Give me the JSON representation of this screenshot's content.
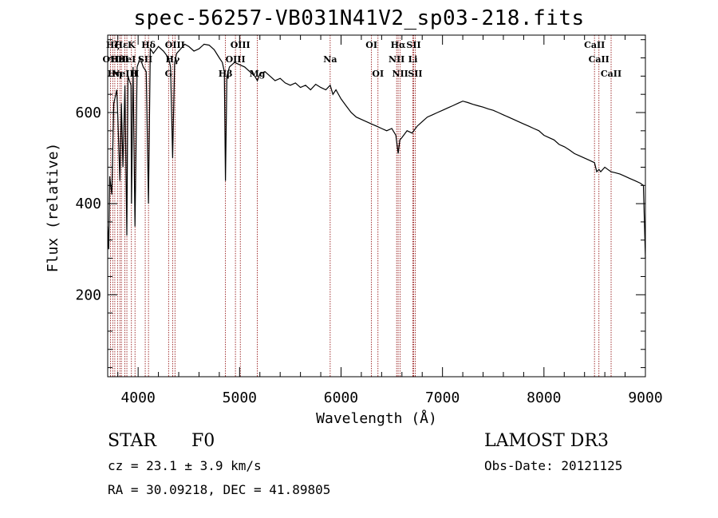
{
  "chart_data": {
    "type": "line",
    "title": "spec-56257-VB031N41V2_sp03-218.fits",
    "xlabel": "Wavelength (Å)",
    "ylabel": "Flux (relative)",
    "xlim": [
      3700,
      9000
    ],
    "ylim": [
      20,
      770
    ],
    "xticks": [
      4000,
      5000,
      6000,
      7000,
      8000,
      9000
    ],
    "yticks": [
      200,
      400,
      600
    ],
    "series": [
      {
        "name": "flux",
        "x": [
          3700,
          3710,
          3720,
          3740,
          3760,
          3790,
          3800,
          3820,
          3835,
          3850,
          3870,
          3889,
          3900,
          3930,
          3934,
          3950,
          3969,
          3990,
          4020,
          4050,
          4080,
          4102,
          4120,
          4150,
          4200,
          4250,
          4300,
          4320,
          4340,
          4360,
          4380,
          4420,
          4460,
          4500,
          4550,
          4600,
          4650,
          4700,
          4750,
          4800,
          4830,
          4850,
          4861,
          4875,
          4900,
          4950,
          5000,
          5050,
          5100,
          5150,
          5175,
          5200,
          5250,
          5300,
          5350,
          5400,
          5450,
          5500,
          5550,
          5600,
          5650,
          5700,
          5750,
          5800,
          5850,
          5893,
          5920,
          5950,
          6000,
          6050,
          6100,
          6150,
          6200,
          6250,
          6300,
          6350,
          6400,
          6450,
          6500,
          6540,
          6563,
          6580,
          6600,
          6650,
          6700,
          6750,
          6800,
          6850,
          6900,
          6950,
          7000,
          7050,
          7100,
          7150,
          7200,
          7250,
          7300,
          7350,
          7400,
          7450,
          7500,
          7550,
          7600,
          7650,
          7700,
          7750,
          7800,
          7850,
          7900,
          7950,
          8000,
          8050,
          8100,
          8150,
          8200,
          8250,
          8300,
          8350,
          8400,
          8450,
          8498,
          8520,
          8542,
          8560,
          8600,
          8630,
          8662,
          8700,
          8750,
          8800,
          8850,
          8900,
          8950,
          8980,
          9000
        ],
        "y": [
          350,
          300,
          460,
          420,
          620,
          650,
          590,
          450,
          620,
          480,
          660,
          330,
          680,
          660,
          400,
          700,
          350,
          700,
          720,
          700,
          690,
          400,
          740,
          730,
          745,
          735,
          720,
          700,
          500,
          710,
          730,
          740,
          750,
          745,
          735,
          740,
          750,
          748,
          738,
          720,
          710,
          690,
          450,
          680,
          700,
          710,
          705,
          700,
          690,
          680,
          670,
          685,
          690,
          680,
          670,
          675,
          665,
          660,
          665,
          655,
          660,
          650,
          662,
          655,
          650,
          660,
          640,
          650,
          630,
          615,
          600,
          590,
          585,
          580,
          575,
          570,
          565,
          560,
          565,
          550,
          510,
          540,
          545,
          560,
          555,
          570,
          580,
          590,
          595,
          600,
          605,
          610,
          615,
          620,
          625,
          622,
          618,
          615,
          612,
          608,
          605,
          600,
          595,
          590,
          585,
          580,
          575,
          570,
          565,
          560,
          550,
          545,
          540,
          530,
          525,
          518,
          510,
          505,
          500,
          495,
          490,
          470,
          475,
          470,
          480,
          475,
          470,
          468,
          465,
          460,
          455,
          450,
          445,
          440,
          280
        ]
      }
    ],
    "lines": [
      {
        "wave": 3727,
        "label": "OII",
        "row": 1
      },
      {
        "wave": 3750,
        "label": "Hζ",
        "row": 0
      },
      {
        "wave": 3770,
        "label": "Hη",
        "row": 2
      },
      {
        "wave": 3797,
        "label": "Hθ",
        "row": 1
      },
      {
        "wave": 3820,
        "label": "HeI",
        "row": 1
      },
      {
        "wave": 3835,
        "label": "Hε",
        "row": 0
      },
      {
        "wave": 3869,
        "label": "NeIII",
        "row": 2
      },
      {
        "wave": 3889,
        "label": "HeI",
        "row": 1
      },
      {
        "wave": 3934,
        "label": "K",
        "row": 0
      },
      {
        "wave": 3969,
        "label": "H",
        "row": 2
      },
      {
        "wave": 4070,
        "label": "SII",
        "row": 1
      },
      {
        "wave": 4102,
        "label": "Hδ",
        "row": 0
      },
      {
        "wave": 4300,
        "label": "G",
        "row": 2
      },
      {
        "wave": 4340,
        "label": "Hγ",
        "row": 1
      },
      {
        "wave": 4363,
        "label": "OIII",
        "row": 0
      },
      {
        "wave": 4861,
        "label": "Hβ",
        "row": 2
      },
      {
        "wave": 4959,
        "label": "OIII",
        "row": 1
      },
      {
        "wave": 5007,
        "label": "OIII",
        "row": 0
      },
      {
        "wave": 5175,
        "label": "Mg",
        "row": 2
      },
      {
        "wave": 5893,
        "label": "Na",
        "row": 1
      },
      {
        "wave": 6300,
        "label": "OI",
        "row": 0
      },
      {
        "wave": 6364,
        "label": "OI",
        "row": 2
      },
      {
        "wave": 6548,
        "label": "NII",
        "row": 1
      },
      {
        "wave": 6563,
        "label": "Hα",
        "row": 0
      },
      {
        "wave": 6583,
        "label": "NII",
        "row": 2
      },
      {
        "wave": 6716,
        "label": "SII",
        "row": 0
      },
      {
        "wave": 6731,
        "label": "SII",
        "row": 2
      },
      {
        "wave": 6708,
        "label": "Li",
        "row": 1
      },
      {
        "wave": 8498,
        "label": "CaII",
        "row": 0
      },
      {
        "wave": 8542,
        "label": "CaII",
        "row": 1
      },
      {
        "wave": 8662,
        "label": "CaII",
        "row": 2
      }
    ]
  },
  "info": {
    "class_label": "STAR",
    "subclass": "F0",
    "cz": "cz = 23.1 ± 3.9 km/s",
    "coords": "RA =  30.09218, DEC =  41.89805",
    "survey": "LAMOST DR3",
    "obs_date": "Obs-Date: 20121125"
  },
  "colors": {
    "line_marker": "#8b0000",
    "spectrum": "#000000"
  }
}
